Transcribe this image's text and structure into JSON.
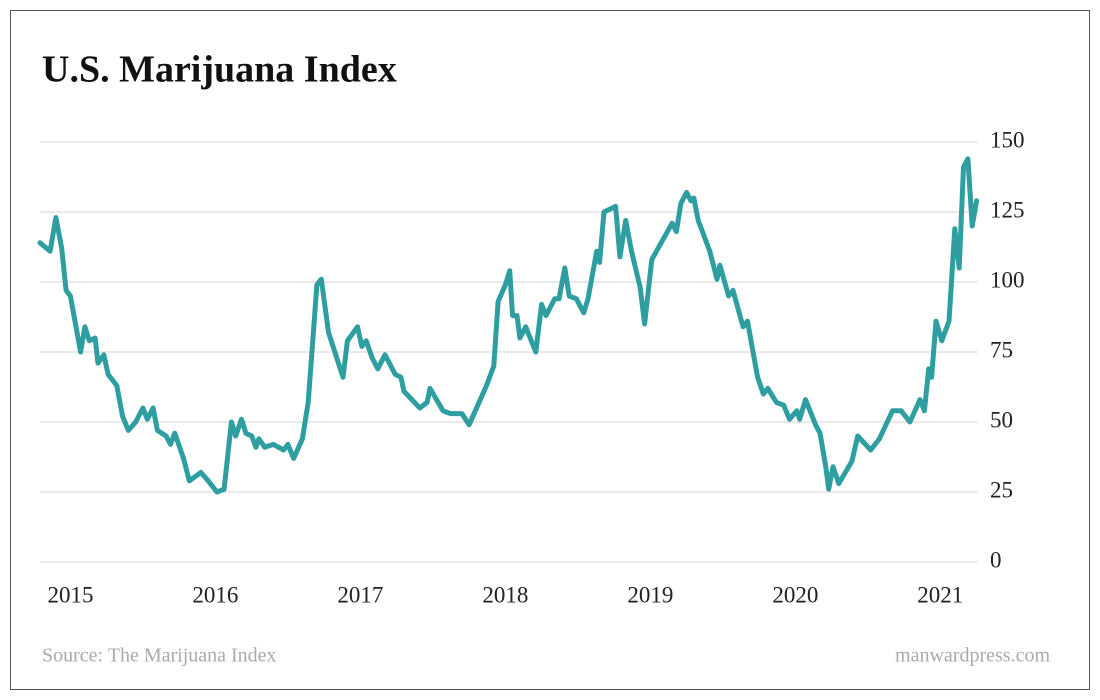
{
  "chart_data": {
    "type": "line",
    "title": "U.S. Marijuana Index",
    "source": "Source: The Marijuana Index",
    "credit": "manwardpress.com",
    "x": [
      2014.79,
      2014.86,
      2014.9,
      2014.94,
      2014.97,
      2015.0,
      2015.07,
      2015.1,
      2015.13,
      2015.17,
      2015.19,
      2015.23,
      2015.26,
      2015.32,
      2015.36,
      2015.4,
      2015.45,
      2015.5,
      2015.53,
      2015.57,
      2015.6,
      2015.66,
      2015.69,
      2015.72,
      2015.78,
      2015.82,
      2015.9,
      2015.95,
      2016.01,
      2016.06,
      2016.11,
      2016.14,
      2016.18,
      2016.21,
      2016.25,
      2016.28,
      2016.3,
      2016.34,
      2016.4,
      2016.47,
      2016.5,
      2016.54,
      2016.6,
      2016.64,
      2016.7,
      2016.73,
      2016.78,
      2016.88,
      2016.91,
      2016.98,
      2017.01,
      2017.04,
      2017.08,
      2017.12,
      2017.17,
      2017.24,
      2017.28,
      2017.3,
      2017.41,
      2017.46,
      2017.48,
      2017.57,
      2017.62,
      2017.7,
      2017.75,
      2017.81,
      2017.87,
      2017.92,
      2017.95,
      2018.0,
      2018.03,
      2018.05,
      2018.08,
      2018.1,
      2018.14,
      2018.21,
      2018.25,
      2018.28,
      2018.34,
      2018.37,
      2018.41,
      2018.44,
      2018.49,
      2018.54,
      2018.57,
      2018.63,
      2018.65,
      2018.68,
      2018.76,
      2018.79,
      2018.83,
      2018.87,
      2018.93,
      2018.96,
      2019.01,
      2019.15,
      2019.18,
      2019.21,
      2019.25,
      2019.28,
      2019.3,
      2019.33,
      2019.41,
      2019.46,
      2019.48,
      2019.54,
      2019.57,
      2019.64,
      2019.67,
      2019.74,
      2019.78,
      2019.81,
      2019.87,
      2019.92,
      2019.96,
      2020.01,
      2020.03,
      2020.07,
      2020.14,
      2020.17,
      2020.21,
      2020.23,
      2020.26,
      2020.3,
      2020.39,
      2020.43,
      2020.52,
      2020.58,
      2020.67,
      2020.73,
      2020.79,
      2020.86,
      2020.89,
      2020.92,
      2020.94,
      2020.97,
      2021.01,
      2021.06,
      2021.1,
      2021.13,
      2021.16,
      2021.19,
      2021.22,
      2021.25
    ],
    "series": [
      {
        "name": "U.S. Marijuana Index",
        "color": "#2e9ea1",
        "values": [
          114,
          111,
          123,
          112,
          97,
          95,
          75,
          84,
          79,
          80,
          71,
          74,
          67,
          63,
          52,
          47,
          50,
          55,
          51,
          55,
          47,
          45,
          42,
          46,
          37,
          29,
          32,
          29,
          25,
          26,
          50,
          45,
          51,
          46,
          45,
          41,
          44,
          41,
          42,
          40,
          42,
          37,
          44,
          57,
          99,
          101,
          82,
          66,
          79,
          84,
          77,
          79,
          73,
          69,
          74,
          67,
          66,
          61,
          55,
          57,
          62,
          54,
          53,
          53,
          49,
          56,
          63,
          70,
          93,
          99,
          104,
          88,
          88,
          80,
          84,
          75,
          92,
          88,
          94,
          94,
          105,
          95,
          94,
          89,
          94,
          111,
          107,
          125,
          127,
          109,
          122,
          111,
          98,
          85,
          108,
          121,
          118,
          128,
          132,
          129,
          130,
          122,
          111,
          101,
          106,
          95,
          97,
          84,
          86,
          66,
          60,
          62,
          57,
          56,
          51,
          54,
          51,
          58,
          49,
          46,
          34,
          26,
          34,
          28,
          36,
          45,
          40,
          44,
          54,
          54,
          50,
          58,
          54,
          69,
          66,
          86,
          79,
          86,
          119,
          105,
          141,
          144,
          120,
          129
        ]
      }
    ],
    "xlim": [
      2014.79,
      2021.26
    ],
    "xticks": [
      2015,
      2016,
      2017,
      2018,
      2019,
      2020,
      2021
    ],
    "ylim": [
      0,
      150
    ],
    "yticks": [
      0,
      25,
      50,
      75,
      100,
      125,
      150
    ],
    "grid": true
  }
}
